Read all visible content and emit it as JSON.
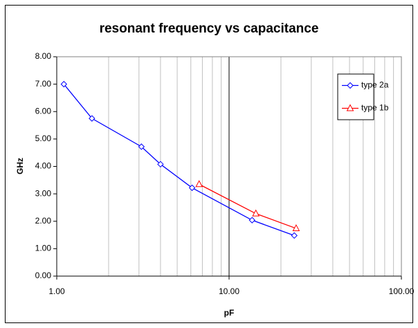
{
  "chart_data": {
    "type": "line",
    "title": "resonant frequency vs capacitance",
    "xlabel": "pF",
    "ylabel": "GHz",
    "xscale": "log",
    "xlim": [
      1,
      100
    ],
    "xticks": [
      {
        "value": 1,
        "label": "1.00"
      },
      {
        "value": 10,
        "label": "10.00"
      },
      {
        "value": 100,
        "label": "100.00"
      }
    ],
    "ylim": [
      0,
      8
    ],
    "yticks": [
      {
        "value": 0,
        "label": "0.00"
      },
      {
        "value": 1,
        "label": "1.00"
      },
      {
        "value": 2,
        "label": "2.00"
      },
      {
        "value": 3,
        "label": "3.00"
      },
      {
        "value": 4,
        "label": "4.00"
      },
      {
        "value": 5,
        "label": "5.00"
      },
      {
        "value": 6,
        "label": "6.00"
      },
      {
        "value": 7,
        "label": "7.00"
      },
      {
        "value": 8,
        "label": "8.00"
      }
    ],
    "grid": "x-minor",
    "legend": "upper right",
    "series": [
      {
        "name": "type 2a",
        "color": "#0000ff",
        "marker": "diamond",
        "x": [
          1.1,
          1.6,
          3.1,
          4.0,
          6.1,
          13.6,
          23.9
        ],
        "values": [
          7.0,
          5.75,
          4.72,
          4.08,
          3.22,
          2.04,
          1.48
        ]
      },
      {
        "name": "type 1b",
        "color": "#ff0000",
        "marker": "triangle",
        "x": [
          6.7,
          14.3,
          24.5
        ],
        "values": [
          3.35,
          2.28,
          1.74
        ]
      }
    ]
  }
}
